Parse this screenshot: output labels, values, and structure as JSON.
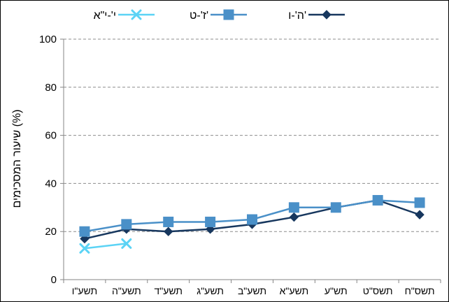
{
  "chart_data": {
    "type": "line",
    "title": "",
    "xlabel": "",
    "ylabel": "שיעור המסכימים (%)",
    "ylim": [
      0,
      100
    ],
    "yticks": [
      0,
      20,
      40,
      60,
      80,
      100
    ],
    "grid": true,
    "legend_position": "top",
    "categories": [
      "תשס\"ח",
      "תשס\"ט",
      "תש\"ע",
      "תשע\"א",
      "תשע\"ב",
      "תשע\"ג",
      "תשע\"ד",
      "תשע\"ה",
      "תשע\"ו"
    ],
    "series": [
      {
        "name": "ה'-ו'",
        "color": "#17375E",
        "marker": "diamond",
        "values": [
          27,
          33,
          30,
          26,
          23,
          21,
          20,
          21,
          17
        ]
      },
      {
        "name": "ז'-ט'",
        "color": "#4A90C8",
        "marker": "square",
        "values": [
          32,
          33,
          30,
          30,
          25,
          24,
          24,
          23,
          20
        ]
      },
      {
        "name": "י'-י\"א",
        "color": "#5BD3F5",
        "marker": "x",
        "values": [
          null,
          null,
          null,
          null,
          null,
          null,
          null,
          15,
          13
        ]
      }
    ]
  }
}
